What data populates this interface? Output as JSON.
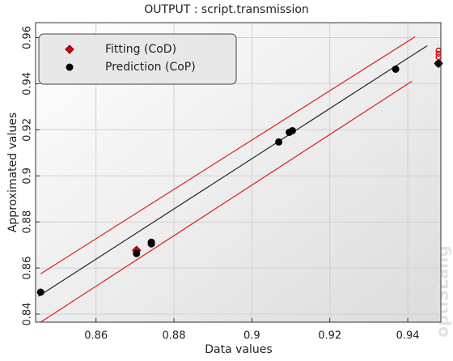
{
  "chart_data": {
    "type": "scatter",
    "title": "OUTPUT : script.transmission",
    "xlabel": "Data values",
    "ylabel": "Approximated values",
    "watermark": "optiSLang",
    "xlim": [
      0.8445,
      0.9485
    ],
    "ylim": [
      0.8365,
      0.9665
    ],
    "xticks": [
      0.86,
      0.88,
      0.9,
      0.92,
      0.94
    ],
    "yticks": [
      0.84,
      0.86,
      0.88,
      0.9,
      0.92,
      0.94,
      0.96
    ],
    "grid": true,
    "legend": "upper left",
    "series": [
      {
        "marker": "line",
        "color": "#e02020",
        "x": [
          0.8458,
          0.9419
        ],
        "values": [
          0.8575,
          0.9604
        ]
      },
      {
        "marker": "line",
        "color": "#e02020",
        "x": [
          0.8458,
          0.9411
        ],
        "values": [
          0.8365,
          0.9411
        ]
      },
      {
        "marker": "line",
        "color": "#222222",
        "x": [
          0.8452,
          0.945
        ],
        "values": [
          0.8477,
          0.9565
        ]
      },
      {
        "name": "Fitting (CoD)",
        "marker": "diamond",
        "color": "#e00000",
        "x": [
          0.8704,
          0.9479
        ],
        "values": [
          0.8677,
          0.9488
        ]
      },
      {
        "marker": "circle-open",
        "color": "#e00000",
        "x": [
          0.9479,
          0.9479,
          0.9479
        ],
        "values": [
          0.9544,
          0.953,
          0.9516
        ]
      },
      {
        "name": "Prediction (CoP)",
        "marker": "circle",
        "color": "#000000",
        "x": [
          0.8458,
          0.8704,
          0.8742,
          0.8742,
          0.9069,
          0.9096,
          0.9104,
          0.9369,
          0.9479
        ],
        "values": [
          0.8495,
          0.8663,
          0.8705,
          0.8712,
          0.9147,
          0.9189,
          0.9196,
          0.9463,
          0.9488
        ]
      }
    ]
  }
}
